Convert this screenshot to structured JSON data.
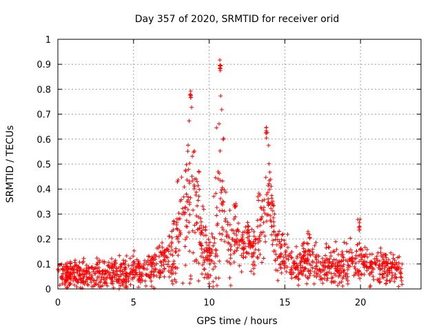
{
  "chart_data": {
    "type": "scatter",
    "title": "Day 357 of 2020, SRMTID for receiver orid",
    "xlabel": "GPS time / hours",
    "ylabel": "SRMTID / TECUs",
    "xlim": [
      0,
      24
    ],
    "ylim": [
      0,
      1
    ],
    "xticks": [
      0,
      5,
      10,
      15,
      20
    ],
    "xtick_labels": [
      "0",
      "5",
      "10",
      "15",
      "20"
    ],
    "yticks": [
      0,
      0.1,
      0.2,
      0.3,
      0.4,
      0.5,
      0.6,
      0.7,
      0.8,
      0.9,
      1
    ],
    "ytick_labels": [
      "0",
      "0.1",
      "0.2",
      "0.3",
      "0.4",
      "0.5",
      "0.6",
      "0.7",
      "0.8",
      "0.9",
      "1"
    ],
    "grid": true,
    "marker": "+",
    "color": "#ff0000",
    "profile": {
      "x": [
        0,
        1,
        2,
        3,
        4,
        5,
        6,
        6.5,
        7,
        7.5,
        8,
        8.5,
        9,
        9.5,
        10,
        10.3,
        10.8,
        11.2,
        11.6,
        12,
        12.5,
        13,
        13.5,
        14,
        14.5,
        15,
        15.5,
        16,
        16.5,
        17,
        17.5,
        18,
        18.5,
        19,
        19.5,
        20,
        20.5,
        21,
        21.5,
        22,
        22.8
      ],
      "y": [
        0.06,
        0.06,
        0.05,
        0.055,
        0.06,
        0.07,
        0.08,
        0.09,
        0.11,
        0.15,
        0.25,
        0.32,
        0.3,
        0.22,
        0.12,
        0.15,
        0.35,
        0.2,
        0.18,
        0.18,
        0.17,
        0.15,
        0.28,
        0.3,
        0.18,
        0.12,
        0.1,
        0.1,
        0.11,
        0.1,
        0.09,
        0.09,
        0.1,
        0.09,
        0.1,
        0.11,
        0.1,
        0.09,
        0.09,
        0.08,
        0.07
      ]
    },
    "spread": {
      "x": [
        0,
        5,
        7,
        8,
        8.5,
        9,
        10,
        10.5,
        11,
        12,
        13,
        13.5,
        14,
        15,
        16,
        20,
        22.8
      ],
      "y": [
        0.025,
        0.03,
        0.04,
        0.12,
        0.2,
        0.13,
        0.05,
        0.12,
        0.09,
        0.05,
        0.04,
        0.1,
        0.08,
        0.04,
        0.035,
        0.04,
        0.03
      ]
    },
    "peaks": [
      {
        "x": 8.8,
        "y": 0.8,
        "width": 0.55
      },
      {
        "x": 10.7,
        "y": 0.92,
        "width": 0.55
      },
      {
        "x": 13.8,
        "y": 0.66,
        "width": 0.55
      },
      {
        "x": 11.7,
        "y": 0.35,
        "width": 0.3
      },
      {
        "x": 12.6,
        "y": 0.26,
        "width": 0.3
      },
      {
        "x": 16.6,
        "y": 0.24,
        "width": 0.25
      },
      {
        "x": 19.9,
        "y": 0.28,
        "width": 0.25
      }
    ],
    "point_count": 1500,
    "seed": 357
  }
}
